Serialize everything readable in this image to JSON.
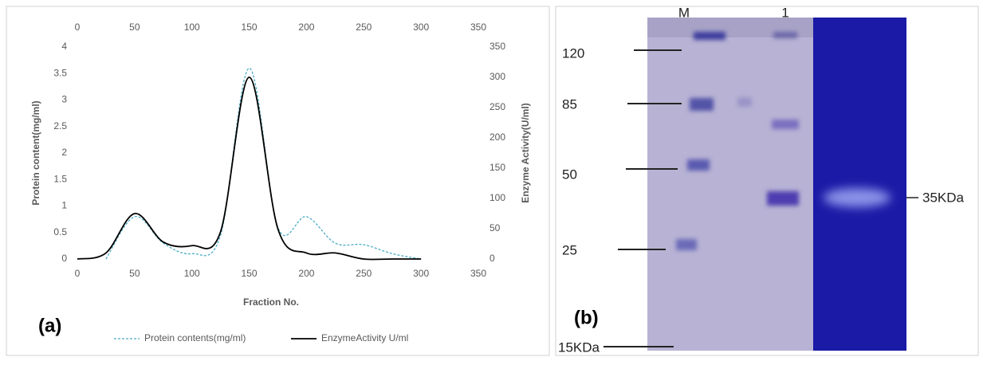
{
  "chart_data": {
    "type": "line",
    "label": "(a)",
    "xlabel": "Fraction No.",
    "ylabel": "Protein content(mg/ml)",
    "y2label": "Enzyme Activity(U/ml)",
    "x": [
      0,
      25,
      50,
      75,
      100,
      125,
      150,
      175,
      200,
      225,
      250,
      275,
      300
    ],
    "series": [
      {
        "name": "Protein contents(mg/ml)",
        "color": "#4bacc6",
        "dashed": true,
        "values": [
          null,
          0,
          0.8,
          0.3,
          0.1,
          0.45,
          3.6,
          0.6,
          0.8,
          0.3,
          0.27,
          0.1,
          0
        ]
      },
      {
        "name": "EnzymeActivity U/ml",
        "color": "#000000",
        "axis": "y2",
        "values": [
          0,
          10,
          75,
          28,
          22,
          45,
          300,
          50,
          10,
          10,
          0,
          0,
          0
        ]
      }
    ],
    "xlim": [
      0,
      350
    ],
    "xticks": [
      0,
      50,
      100,
      150,
      200,
      250,
      300,
      350
    ],
    "x2lim": [
      0,
      350
    ],
    "x2ticks": [
      0,
      50,
      100,
      150,
      200,
      250,
      300,
      350
    ],
    "ylim": [
      0,
      4
    ],
    "yticks": [
      0,
      0.5,
      1,
      1.5,
      2,
      2.5,
      3,
      3.5,
      4
    ],
    "y2lim": [
      0,
      350
    ],
    "y2ticks": [
      0,
      50,
      100,
      150,
      200,
      250,
      300,
      350
    ],
    "grid": false,
    "legend": "bottom"
  },
  "gel": {
    "label": "(b)",
    "lanes": [
      "M",
      "1"
    ],
    "markers": [
      "120",
      "85",
      "50",
      "25",
      "15KDa"
    ],
    "band_label": "35KDa"
  }
}
